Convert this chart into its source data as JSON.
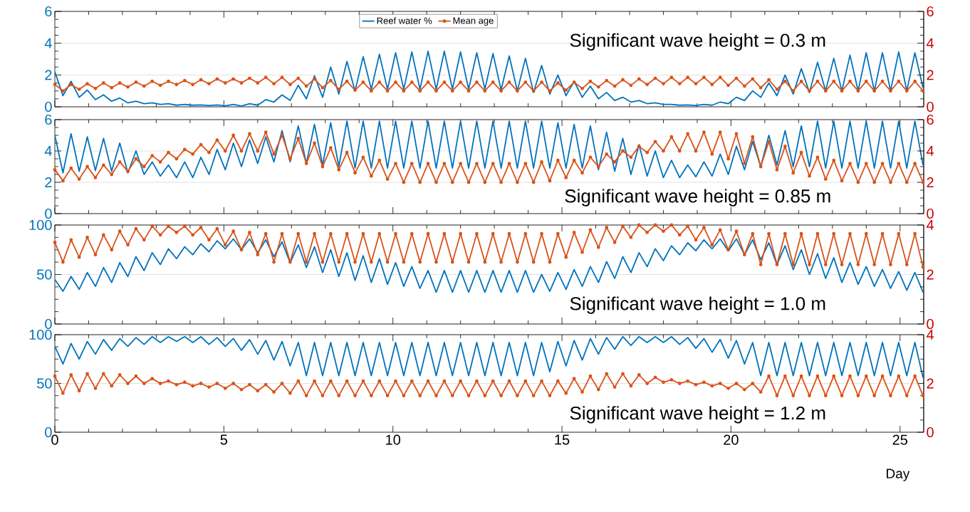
{
  "chart_data": [
    {
      "type": "line",
      "grid": "y",
      "legend": "top",
      "tick_labels": "y",
      "x": [
        0,
        0.24,
        0.48,
        0.72,
        0.96,
        1.2,
        1.44,
        1.68,
        1.92,
        2.16,
        2.4,
        2.64,
        2.88,
        3.12,
        3.36,
        3.6,
        3.84,
        4.08,
        4.32,
        4.56,
        4.8,
        5.04,
        5.28,
        5.52,
        5.76,
        6,
        6.24,
        6.48,
        6.72,
        6.96,
        7.2,
        7.44,
        7.68,
        7.92,
        8.16,
        8.4,
        8.64,
        8.88,
        9.12,
        9.36,
        9.6,
        9.84,
        10.08,
        10.32,
        10.56,
        10.8,
        11.04,
        11.28,
        11.52,
        11.76,
        12,
        12.24,
        12.48,
        12.72,
        12.96,
        13.2,
        13.44,
        13.68,
        13.92,
        14.16,
        14.4,
        14.64,
        14.88,
        15.12,
        15.36,
        15.6,
        15.84,
        16.08,
        16.32,
        16.56,
        16.8,
        17.04,
        17.28,
        17.52,
        17.76,
        18,
        18.24,
        18.48,
        18.72,
        18.96,
        19.2,
        19.44,
        19.68,
        19.92,
        20.16,
        20.4,
        20.64,
        20.88,
        21.12,
        21.36,
        21.6,
        21.84,
        22.08,
        22.32,
        22.56,
        22.8,
        23.04,
        23.28,
        23.52,
        23.76,
        24,
        24.24,
        24.48,
        24.72,
        24.96,
        25.2,
        25.44,
        25.68
      ],
      "xlim": [
        0,
        25.7
      ],
      "xticks": [
        0,
        5,
        10,
        15,
        20,
        25
      ],
      "ylim": [
        0,
        6
      ],
      "yticks": [
        0,
        2,
        4,
        6
      ],
      "y2lim": [
        0,
        6
      ],
      "y2ticks": [
        0,
        2,
        4,
        6
      ],
      "annotations": [
        "Significant wave height = 0.3 m"
      ],
      "series": [
        {
          "name": "Reef water %",
          "color": "#0072bd",
          "values": [
            2.2,
            0.7,
            1.6,
            0.6,
            1.05,
            0.45,
            0.75,
            0.35,
            0.55,
            0.25,
            0.35,
            0.2,
            0.25,
            0.15,
            0.2,
            0.1,
            0.15,
            0.1,
            0.12,
            0.08,
            0.12,
            0.06,
            0.15,
            0.05,
            0.2,
            0.1,
            0.45,
            0.3,
            0.75,
            0.4,
            1.35,
            0.5,
            1.95,
            0.6,
            2.5,
            0.8,
            2.85,
            1.0,
            3.15,
            1.1,
            3.3,
            1.1,
            3.4,
            1.1,
            3.45,
            1.1,
            3.5,
            1.1,
            3.5,
            1.1,
            3.45,
            1.1,
            3.4,
            1.1,
            3.35,
            1.05,
            3.2,
            1.0,
            3.05,
            0.9,
            2.6,
            0.8,
            2.0,
            0.7,
            1.6,
            0.6,
            1.3,
            0.5,
            0.9,
            0.4,
            0.6,
            0.3,
            0.4,
            0.2,
            0.25,
            0.15,
            0.15,
            0.1,
            0.12,
            0.08,
            0.15,
            0.1,
            0.3,
            0.2,
            0.6,
            0.4,
            1.0,
            0.6,
            1.5,
            0.7,
            2.0,
            0.8,
            2.4,
            0.9,
            2.8,
            1.0,
            3.05,
            1.0,
            3.25,
            1.0,
            3.4,
            1.0,
            3.4,
            1.0,
            3.45,
            1.0,
            3.4,
            1.2
          ]
        },
        {
          "name": "Mean age",
          "color": "#d95319",
          "axis": "y2",
          "marker": "circle",
          "values": [
            1.4,
            1.0,
            1.4,
            1.1,
            1.45,
            1.15,
            1.5,
            1.2,
            1.5,
            1.25,
            1.55,
            1.3,
            1.6,
            1.35,
            1.6,
            1.4,
            1.65,
            1.4,
            1.7,
            1.45,
            1.75,
            1.5,
            1.75,
            1.5,
            1.8,
            1.5,
            1.85,
            1.45,
            1.85,
            1.4,
            1.8,
            1.3,
            1.75,
            1.2,
            1.65,
            1.1,
            1.6,
            1.05,
            1.55,
            1.0,
            1.55,
            1.0,
            1.55,
            1.0,
            1.55,
            1.0,
            1.55,
            1.0,
            1.55,
            1.0,
            1.55,
            1.0,
            1.55,
            1.0,
            1.55,
            1.0,
            1.55,
            1.0,
            1.55,
            1.0,
            1.55,
            1.0,
            1.5,
            1.05,
            1.55,
            1.15,
            1.6,
            1.25,
            1.65,
            1.3,
            1.7,
            1.35,
            1.75,
            1.4,
            1.8,
            1.45,
            1.85,
            1.45,
            1.85,
            1.45,
            1.85,
            1.4,
            1.85,
            1.35,
            1.8,
            1.3,
            1.75,
            1.2,
            1.7,
            1.1,
            1.6,
            1.0,
            1.6,
            1.0,
            1.6,
            1.0,
            1.6,
            1.0,
            1.6,
            1.0,
            1.6,
            1.0,
            1.6,
            1.0,
            1.6,
            1.0,
            1.6,
            1.0
          ]
        }
      ]
    },
    {
      "type": "line",
      "grid": "y",
      "tick_labels": "y",
      "x": [
        0,
        0.24,
        0.48,
        0.72,
        0.96,
        1.2,
        1.44,
        1.68,
        1.92,
        2.16,
        2.4,
        2.64,
        2.88,
        3.12,
        3.36,
        3.6,
        3.84,
        4.08,
        4.32,
        4.56,
        4.8,
        5.04,
        5.28,
        5.52,
        5.76,
        6,
        6.24,
        6.48,
        6.72,
        6.96,
        7.2,
        7.44,
        7.68,
        7.92,
        8.16,
        8.4,
        8.64,
        8.88,
        9.12,
        9.36,
        9.6,
        9.84,
        10.08,
        10.32,
        10.56,
        10.8,
        11.04,
        11.28,
        11.52,
        11.76,
        12,
        12.24,
        12.48,
        12.72,
        12.96,
        13.2,
        13.44,
        13.68,
        13.92,
        14.16,
        14.4,
        14.64,
        14.88,
        15.12,
        15.36,
        15.6,
        15.84,
        16.08,
        16.32,
        16.56,
        16.8,
        17.04,
        17.28,
        17.52,
        17.76,
        18,
        18.24,
        18.48,
        18.72,
        18.96,
        19.2,
        19.44,
        19.68,
        19.92,
        20.16,
        20.4,
        20.64,
        20.88,
        21.12,
        21.36,
        21.6,
        21.84,
        22.08,
        22.32,
        22.56,
        22.8,
        23.04,
        23.28,
        23.52,
        23.76,
        24,
        24.24,
        24.48,
        24.72,
        24.96,
        25.2,
        25.44,
        25.68
      ],
      "xlim": [
        0,
        25.7
      ],
      "xticks": [
        0,
        5,
        10,
        15,
        20,
        25
      ],
      "ylim": [
        0,
        6
      ],
      "yticks": [
        0,
        2,
        4,
        6
      ],
      "y2lim": [
        0,
        6
      ],
      "y2ticks": [
        0,
        2,
        4,
        6
      ],
      "annotations": [
        "Significant wave height = 0.85 m"
      ],
      "series": [
        {
          "color": "#0072bd",
          "values": [
            5.0,
            2.6,
            5.1,
            2.7,
            4.9,
            2.75,
            4.8,
            2.7,
            4.5,
            2.6,
            4.0,
            2.5,
            3.3,
            2.4,
            3.1,
            2.3,
            3.3,
            2.3,
            3.6,
            2.5,
            4.1,
            2.8,
            4.5,
            3.0,
            4.7,
            3.2,
            4.9,
            3.3,
            5.3,
            3.3,
            5.6,
            3.2,
            5.7,
            3.1,
            5.8,
            3.0,
            5.9,
            2.9,
            5.9,
            2.9,
            5.9,
            2.9,
            5.9,
            2.9,
            5.9,
            2.9,
            5.9,
            2.9,
            5.9,
            2.9,
            5.9,
            2.9,
            5.9,
            2.9,
            5.9,
            2.9,
            5.9,
            2.9,
            5.9,
            2.9,
            5.9,
            2.9,
            5.8,
            2.9,
            5.7,
            2.9,
            5.6,
            2.8,
            5.2,
            2.7,
            4.8,
            2.5,
            4.4,
            2.4,
            4.0,
            2.3,
            3.4,
            2.3,
            3.1,
            2.35,
            3.3,
            2.4,
            3.8,
            2.5,
            4.3,
            2.8,
            4.6,
            3.0,
            5.0,
            3.1,
            5.3,
            3.0,
            5.6,
            3.0,
            5.9,
            2.9,
            5.9,
            2.9,
            5.9,
            2.9,
            5.9,
            2.9,
            5.9,
            2.9,
            5.9,
            2.9,
            5.9,
            3.1
          ]
        },
        {
          "color": "#d95319",
          "axis": "y2",
          "marker": "circle",
          "values": [
            2.8,
            2.1,
            2.9,
            2.2,
            3.0,
            2.3,
            3.1,
            2.5,
            3.3,
            2.7,
            3.5,
            3.0,
            3.7,
            3.3,
            3.9,
            3.5,
            4.1,
            3.8,
            4.4,
            3.9,
            4.7,
            4.0,
            5.0,
            4.0,
            5.1,
            4.0,
            5.2,
            3.8,
            5.0,
            3.5,
            4.8,
            3.2,
            4.5,
            3.0,
            4.2,
            2.8,
            3.9,
            2.6,
            3.6,
            2.4,
            3.4,
            2.2,
            3.2,
            2.0,
            3.2,
            2.0,
            3.2,
            2.0,
            3.2,
            2.0,
            3.2,
            2.0,
            3.2,
            2.0,
            3.2,
            2.0,
            3.2,
            2.0,
            3.2,
            2.0,
            3.3,
            2.1,
            3.4,
            2.3,
            3.4,
            2.6,
            3.6,
            3.0,
            3.8,
            3.3,
            4.0,
            3.6,
            4.3,
            3.9,
            4.6,
            4.0,
            4.9,
            4.0,
            5.1,
            4.0,
            5.2,
            3.8,
            5.2,
            3.5,
            5.1,
            3.2,
            4.9,
            3.0,
            4.6,
            2.8,
            4.3,
            2.6,
            3.9,
            2.4,
            3.6,
            2.2,
            3.4,
            2.1,
            3.2,
            2.0,
            3.2,
            2.0,
            3.2,
            2.0,
            3.2,
            2.0,
            3.2,
            2.0
          ]
        }
      ]
    },
    {
      "type": "line",
      "grid": "y",
      "tick_labels": "y",
      "x": [
        0,
        0.24,
        0.48,
        0.72,
        0.96,
        1.2,
        1.44,
        1.68,
        1.92,
        2.16,
        2.4,
        2.64,
        2.88,
        3.12,
        3.36,
        3.6,
        3.84,
        4.08,
        4.32,
        4.56,
        4.8,
        5.04,
        5.28,
        5.52,
        5.76,
        6,
        6.24,
        6.48,
        6.72,
        6.96,
        7.2,
        7.44,
        7.68,
        7.92,
        8.16,
        8.4,
        8.64,
        8.88,
        9.12,
        9.36,
        9.6,
        9.84,
        10.08,
        10.32,
        10.56,
        10.8,
        11.04,
        11.28,
        11.52,
        11.76,
        12,
        12.24,
        12.48,
        12.72,
        12.96,
        13.2,
        13.44,
        13.68,
        13.92,
        14.16,
        14.4,
        14.64,
        14.88,
        15.12,
        15.36,
        15.6,
        15.84,
        16.08,
        16.32,
        16.56,
        16.8,
        17.04,
        17.28,
        17.52,
        17.76,
        18,
        18.24,
        18.48,
        18.72,
        18.96,
        19.2,
        19.44,
        19.68,
        19.92,
        20.16,
        20.4,
        20.64,
        20.88,
        21.12,
        21.36,
        21.6,
        21.84,
        22.08,
        22.32,
        22.56,
        22.8,
        23.04,
        23.28,
        23.52,
        23.76,
        24,
        24.24,
        24.48,
        24.72,
        24.96,
        25.2,
        25.44,
        25.68
      ],
      "xlim": [
        0,
        25.7
      ],
      "xticks": [
        0,
        5,
        10,
        15,
        20,
        25
      ],
      "ylim": [
        0,
        100
      ],
      "yticks": [
        0,
        50,
        100
      ],
      "y2lim": [
        0,
        4
      ],
      "y2ticks": [
        0,
        2,
        4
      ],
      "annotations": [
        "Significant wave height = 1.0 m"
      ],
      "series": [
        {
          "color": "#0072bd",
          "values": [
            45,
            33,
            48,
            35,
            52,
            38,
            57,
            42,
            62,
            48,
            68,
            54,
            72,
            60,
            76,
            66,
            78,
            70,
            81,
            73,
            84,
            76,
            86,
            75,
            86,
            72,
            85,
            68,
            83,
            62,
            80,
            57,
            78,
            52,
            75,
            48,
            72,
            44,
            69,
            42,
            66,
            40,
            62,
            38,
            58,
            36,
            54,
            32,
            54,
            32,
            54,
            32,
            54,
            32,
            54,
            32,
            54,
            32,
            54,
            32,
            50,
            33,
            52,
            35,
            55,
            38,
            58,
            42,
            63,
            46,
            68,
            52,
            72,
            58,
            76,
            64,
            79,
            70,
            82,
            74,
            85,
            76,
            86,
            74,
            86,
            70,
            85,
            65,
            82,
            60,
            79,
            55,
            75,
            50,
            71,
            46,
            67,
            42,
            62,
            40,
            58,
            38,
            55,
            36,
            53,
            34,
            52,
            32
          ]
        },
        {
          "color": "#d95319",
          "axis": "y2",
          "marker": "circle",
          "values": [
            3.3,
            2.5,
            3.4,
            2.7,
            3.5,
            2.8,
            3.6,
            3.0,
            3.75,
            3.2,
            3.85,
            3.4,
            3.95,
            3.6,
            3.95,
            3.7,
            3.95,
            3.6,
            3.9,
            3.4,
            3.85,
            3.2,
            3.75,
            3.0,
            3.7,
            2.8,
            3.65,
            2.5,
            3.65,
            2.5,
            3.65,
            2.5,
            3.65,
            2.5,
            3.65,
            2.5,
            3.65,
            2.5,
            3.65,
            2.5,
            3.65,
            2.5,
            3.65,
            2.5,
            3.65,
            2.5,
            3.65,
            2.5,
            3.65,
            2.5,
            3.65,
            2.5,
            3.65,
            2.5,
            3.65,
            2.5,
            3.65,
            2.5,
            3.65,
            2.5,
            3.65,
            2.5,
            3.65,
            2.7,
            3.7,
            2.9,
            3.8,
            3.1,
            3.9,
            3.3,
            3.95,
            3.5,
            4.0,
            3.7,
            4.0,
            3.75,
            4.0,
            3.6,
            3.95,
            3.4,
            3.9,
            3.2,
            3.8,
            3.0,
            3.75,
            2.8,
            3.65,
            2.4,
            3.65,
            2.4,
            3.65,
            2.4,
            3.65,
            2.4,
            3.65,
            2.4,
            3.65,
            2.4,
            3.65,
            2.4,
            3.65,
            2.4,
            3.65,
            2.4,
            3.65,
            2.4,
            3.65,
            2.3
          ]
        }
      ]
    },
    {
      "type": "line",
      "grid": "y",
      "xlabel": "Day",
      "x": [
        0,
        0.24,
        0.48,
        0.72,
        0.96,
        1.2,
        1.44,
        1.68,
        1.92,
        2.16,
        2.4,
        2.64,
        2.88,
        3.12,
        3.36,
        3.6,
        3.84,
        4.08,
        4.32,
        4.56,
        4.8,
        5.04,
        5.28,
        5.52,
        5.76,
        6,
        6.24,
        6.48,
        6.72,
        6.96,
        7.2,
        7.44,
        7.68,
        7.92,
        8.16,
        8.4,
        8.64,
        8.88,
        9.12,
        9.36,
        9.6,
        9.84,
        10.08,
        10.32,
        10.56,
        10.8,
        11.04,
        11.28,
        11.52,
        11.76,
        12,
        12.24,
        12.48,
        12.72,
        12.96,
        13.2,
        13.44,
        13.68,
        13.92,
        14.16,
        14.4,
        14.64,
        14.88,
        15.12,
        15.36,
        15.6,
        15.84,
        16.08,
        16.32,
        16.56,
        16.8,
        17.04,
        17.28,
        17.52,
        17.76,
        18,
        18.24,
        18.48,
        18.72,
        18.96,
        19.2,
        19.44,
        19.68,
        19.92,
        20.16,
        20.4,
        20.64,
        20.88,
        21.12,
        21.36,
        21.6,
        21.84,
        22.08,
        22.32,
        22.56,
        22.8,
        23.04,
        23.28,
        23.52,
        23.76,
        24,
        24.24,
        24.48,
        24.72,
        24.96,
        25.2,
        25.44,
        25.68
      ],
      "xlim": [
        0,
        25.7
      ],
      "xticks": [
        0,
        5,
        10,
        15,
        20,
        25
      ],
      "ylim": [
        0,
        100
      ],
      "yticks": [
        0,
        50,
        100
      ],
      "y2lim": [
        0,
        4
      ],
      "y2ticks": [
        0,
        2,
        4
      ],
      "annotations": [
        "Significant wave height = 1.2 m"
      ],
      "series": [
        {
          "color": "#0072bd",
          "values": [
            88,
            70,
            91,
            75,
            93,
            80,
            95,
            84,
            96,
            88,
            97,
            90,
            98,
            92,
            98,
            93,
            98,
            92,
            98,
            90,
            97,
            88,
            96,
            84,
            95,
            80,
            94,
            74,
            93,
            68,
            92,
            58,
            92,
            58,
            92,
            58,
            92,
            58,
            92,
            58,
            92,
            58,
            92,
            58,
            92,
            58,
            92,
            58,
            92,
            58,
            92,
            58,
            92,
            58,
            92,
            58,
            92,
            58,
            92,
            58,
            92,
            62,
            93,
            68,
            94,
            74,
            96,
            80,
            97,
            85,
            98,
            89,
            98,
            92,
            98,
            92,
            98,
            90,
            97,
            86,
            96,
            82,
            95,
            76,
            94,
            70,
            92,
            58,
            92,
            58,
            92,
            58,
            92,
            58,
            92,
            58,
            92,
            58,
            92,
            58,
            92,
            58,
            92,
            58,
            92,
            58,
            92,
            56
          ]
        },
        {
          "color": "#d95319",
          "axis": "y2",
          "marker": "circle",
          "values": [
            2.3,
            1.6,
            2.35,
            1.7,
            2.4,
            1.8,
            2.4,
            1.9,
            2.35,
            2.0,
            2.3,
            2.0,
            2.2,
            2.0,
            2.1,
            1.95,
            2.05,
            1.9,
            2.0,
            1.85,
            2.0,
            1.8,
            2.0,
            1.75,
            1.95,
            1.7,
            1.95,
            1.65,
            2.0,
            1.6,
            2.1,
            1.5,
            2.1,
            1.5,
            2.1,
            1.5,
            2.1,
            1.5,
            2.1,
            1.5,
            2.1,
            1.5,
            2.1,
            1.5,
            2.1,
            1.5,
            2.1,
            1.5,
            2.1,
            1.5,
            2.1,
            1.5,
            2.1,
            1.5,
            2.1,
            1.5,
            2.1,
            1.5,
            2.1,
            1.5,
            2.1,
            1.5,
            2.1,
            1.6,
            2.2,
            1.65,
            2.3,
            1.75,
            2.4,
            1.85,
            2.4,
            1.9,
            2.35,
            2.0,
            2.25,
            2.05,
            2.15,
            2.0,
            2.1,
            1.95,
            2.05,
            1.9,
            2.0,
            1.8,
            2.0,
            1.75,
            2.0,
            1.65,
            2.3,
            1.5,
            2.3,
            1.5,
            2.3,
            1.5,
            2.3,
            1.5,
            2.3,
            1.5,
            2.3,
            1.5,
            2.3,
            1.5,
            2.3,
            1.5,
            2.3,
            1.5,
            2.3,
            1.5
          ]
        }
      ]
    }
  ]
}
